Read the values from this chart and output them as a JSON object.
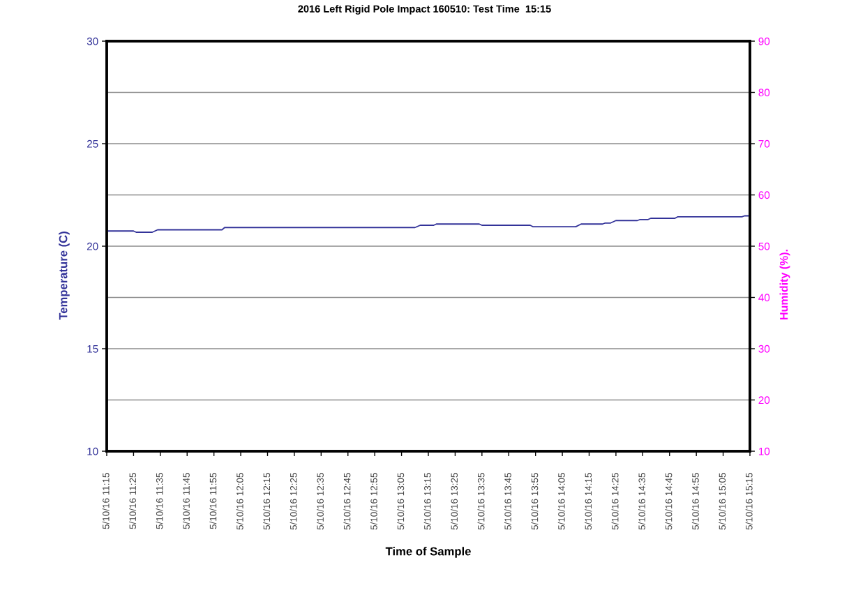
{
  "chart_data": {
    "type": "line",
    "title": "2016 Left Rigid Pole Impact 160510: Test Time  15:15",
    "xlabel": "Time of Sample",
    "ylabel": "Temperature (C)",
    "y2label": "Humidity (%).",
    "xlim": [
      "2016-05-10T11:15",
      "2016-05-10T15:15"
    ],
    "xticks": [
      {
        "value": "2016-05-10T11:15",
        "label": "5/10/16 11:15"
      },
      {
        "value": "2016-05-10T11:25",
        "label": "5/10/16 11:25"
      },
      {
        "value": "2016-05-10T11:35",
        "label": "5/10/16 11:35"
      },
      {
        "value": "2016-05-10T11:45",
        "label": "5/10/16 11:45"
      },
      {
        "value": "2016-05-10T11:55",
        "label": "5/10/16 11:55"
      },
      {
        "value": "2016-05-10T12:05",
        "label": "5/10/16 12:05"
      },
      {
        "value": "2016-05-10T12:15",
        "label": "5/10/16 12:15"
      },
      {
        "value": "2016-05-10T12:25",
        "label": "5/10/16 12:25"
      },
      {
        "value": "2016-05-10T12:35",
        "label": "5/10/16 12:35"
      },
      {
        "value": "2016-05-10T12:45",
        "label": "5/10/16 12:45"
      },
      {
        "value": "2016-05-10T12:55",
        "label": "5/10/16 12:55"
      },
      {
        "value": "2016-05-10T13:05",
        "label": "5/10/16 13:05"
      },
      {
        "value": "2016-05-10T13:15",
        "label": "5/10/16 13:15"
      },
      {
        "value": "2016-05-10T13:25",
        "label": "5/10/16 13:25"
      },
      {
        "value": "2016-05-10T13:35",
        "label": "5/10/16 13:35"
      },
      {
        "value": "2016-05-10T13:45",
        "label": "5/10/16 13:45"
      },
      {
        "value": "2016-05-10T13:55",
        "label": "5/10/16 13:55"
      },
      {
        "value": "2016-05-10T14:05",
        "label": "5/10/16 14:05"
      },
      {
        "value": "2016-05-10T14:15",
        "label": "5/10/16 14:15"
      },
      {
        "value": "2016-05-10T14:25",
        "label": "5/10/16 14:25"
      },
      {
        "value": "2016-05-10T14:35",
        "label": "5/10/16 14:35"
      },
      {
        "value": "2016-05-10T14:45",
        "label": "5/10/16 14:45"
      },
      {
        "value": "2016-05-10T14:55",
        "label": "5/10/16 14:55"
      },
      {
        "value": "2016-05-10T15:05",
        "label": "5/10/16 15:05"
      },
      {
        "value": "2016-05-10T15:15",
        "label": "5/10/16 15:15"
      }
    ],
    "ylim": [
      10,
      30
    ],
    "yticks": [
      10,
      15,
      20,
      25,
      30
    ],
    "y2lim": [
      10,
      90
    ],
    "y2ticks": [
      10,
      20,
      30,
      40,
      50,
      60,
      70,
      80,
      90
    ],
    "grid": "y2",
    "series": [
      {
        "color": "#333399",
        "x": [
          "2016-05-10T11:15",
          "2016-05-10T11:25",
          "2016-05-10T11:26",
          "2016-05-10T11:32",
          "2016-05-10T11:34",
          "2016-05-10T11:58",
          "2016-05-10T11:59",
          "2016-05-10T13:10",
          "2016-05-10T13:12",
          "2016-05-10T13:17",
          "2016-05-10T13:18",
          "2016-05-10T13:34",
          "2016-05-10T13:35",
          "2016-05-10T13:53",
          "2016-05-10T13:54",
          "2016-05-10T14:10",
          "2016-05-10T14:12",
          "2016-05-10T14:20",
          "2016-05-10T14:21",
          "2016-05-10T14:23",
          "2016-05-10T14:25",
          "2016-05-10T14:33",
          "2016-05-10T14:34",
          "2016-05-10T14:37",
          "2016-05-10T14:38",
          "2016-05-10T14:47",
          "2016-05-10T14:48",
          "2016-05-10T15:12",
          "2016-05-10T15:13",
          "2016-05-10T15:15"
        ],
        "values": [
          20.74,
          20.74,
          20.68,
          20.68,
          20.8,
          20.8,
          20.91,
          20.91,
          21.02,
          21.02,
          21.08,
          21.08,
          21.02,
          21.02,
          20.95,
          20.95,
          21.08,
          21.08,
          21.13,
          21.13,
          21.25,
          21.25,
          21.3,
          21.3,
          21.36,
          21.36,
          21.43,
          21.43,
          21.48,
          21.48
        ]
      }
    ]
  }
}
